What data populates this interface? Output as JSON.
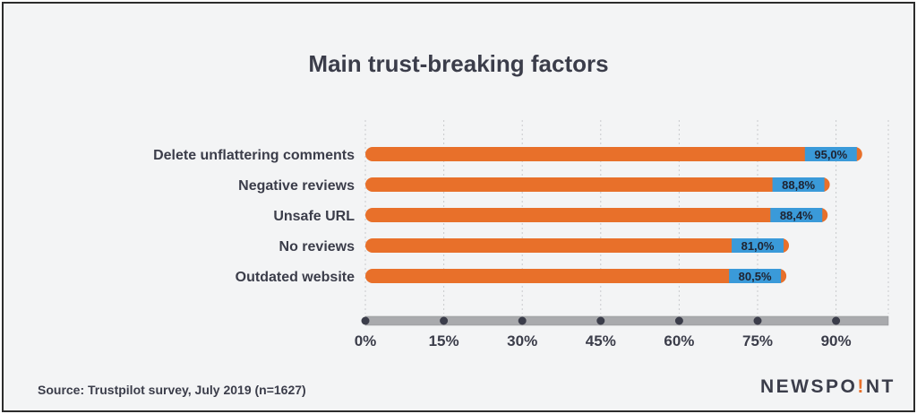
{
  "chart_data": {
    "type": "bar",
    "orientation": "horizontal",
    "title": "Main trust-breaking factors",
    "categories": [
      "Delete unflattering comments",
      "Negative reviews",
      "Unsafe URL",
      "No reviews",
      "Outdated website"
    ],
    "values": [
      95.0,
      88.8,
      88.4,
      81.0,
      80.5
    ],
    "value_labels": [
      "95,0%",
      "88,8%",
      "88,4%",
      "81,0%",
      "80,5%"
    ],
    "x_ticks": [
      0,
      15,
      30,
      45,
      60,
      75,
      90
    ],
    "x_tick_labels": [
      "0%",
      "15%",
      "30%",
      "45%",
      "60%",
      "75%",
      "90%"
    ],
    "xlim": [
      0,
      100
    ],
    "grid": true,
    "colors": {
      "bar": "#e8702a",
      "label_bg": "#3a9ad9",
      "text": "#3b3d4a",
      "axis": "#a9aaad",
      "tick_dot": "#3b3d4a"
    }
  },
  "footer": {
    "source": "Source: Trustpilot survey, July 2019 (n=1627)"
  },
  "logo": {
    "part1": "NEWSPO",
    "excl": "!",
    "part2": "NT"
  }
}
